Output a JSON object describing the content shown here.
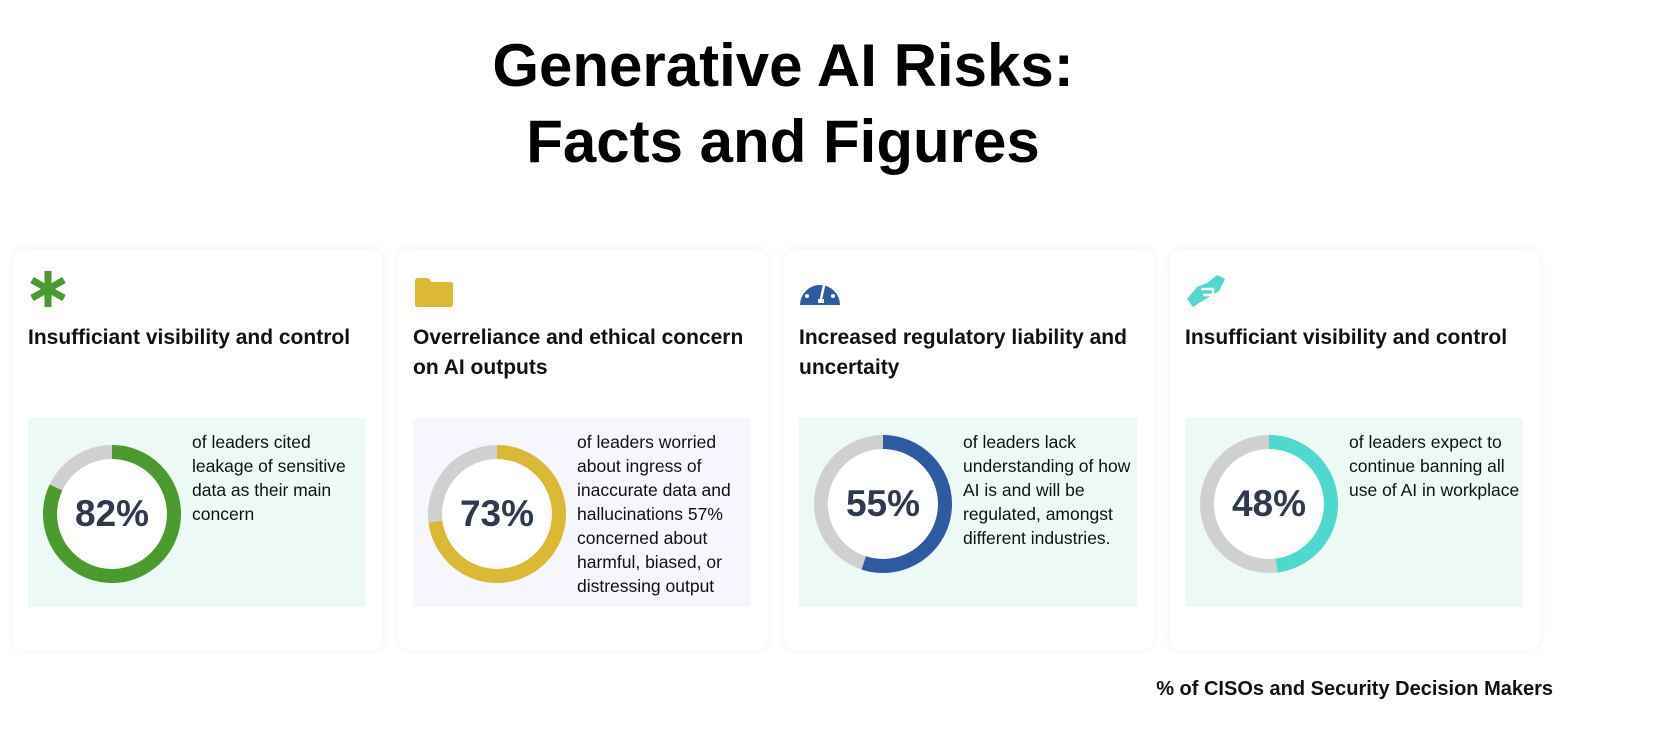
{
  "header": {
    "title_line1": "Generative AI Risks:",
    "title_line2": "Facts and Figures"
  },
  "cards": [
    {
      "icon": "asterisk-icon",
      "color": "#4a9a2e",
      "panel_bg": "#edf9f5",
      "title": "Insufficiant visibility and control",
      "percent": 82,
      "percent_label": "82%",
      "description": "of leaders cited leakage of sensitive data as their main concern"
    },
    {
      "icon": "folder-icon",
      "color": "#dbb934",
      "panel_bg": "#f5f6fe",
      "title": "Overreliance and ethical concern on AI outputs",
      "percent": 73,
      "percent_label": "73%",
      "description": "of leaders worried about ingress of inaccurate data and hallucinations 57% concerned about harmful, biased, or distressing output"
    },
    {
      "icon": "dashboard-gauge-icon",
      "color": "#2d5aa0",
      "panel_bg": "#edf9f5",
      "title": "Increased regulatory liability and uncertaity",
      "percent": 55,
      "percent_label": "55%",
      "description": "of leaders lack understanding of how AI is and will be regulated, amongst different industries."
    },
    {
      "icon": "handshake-icon",
      "color": "#4fd8ce",
      "panel_bg": "#edf9f5",
      "title": "Insufficiant visibility and control",
      "percent": 48,
      "percent_label": "48%",
      "description": "of leaders expect to continue banning all use of AI in workplace"
    }
  ],
  "footer": {
    "note": "% of CISOs and Security Decision Makers"
  }
}
